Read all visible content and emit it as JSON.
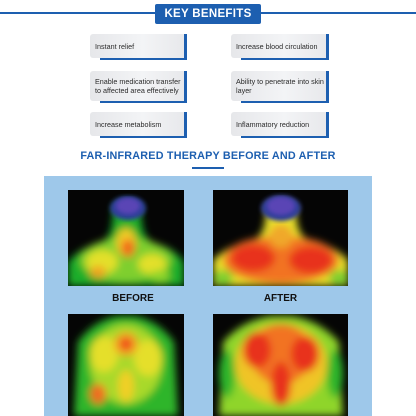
{
  "header": {
    "title": "KEY BENEFITS"
  },
  "benefits": [
    {
      "text": "Instant relief"
    },
    {
      "text": "Increase blood circulation"
    },
    {
      "text": "Enable medication transfer to affected area effectively"
    },
    {
      "text": "Ability to penetrate into skin layer"
    },
    {
      "text": "Increase metabolism"
    },
    {
      "text": "Inflammatory reduction"
    }
  ],
  "section": {
    "title": "FAR-INFRARED THERAPY BEFORE AND AFTER"
  },
  "captions": {
    "before": "BEFORE",
    "after": "AFTER"
  },
  "colors": {
    "accent": "#1d5fb0",
    "panel": "#9ec8ea",
    "card": "#eeeff1"
  }
}
